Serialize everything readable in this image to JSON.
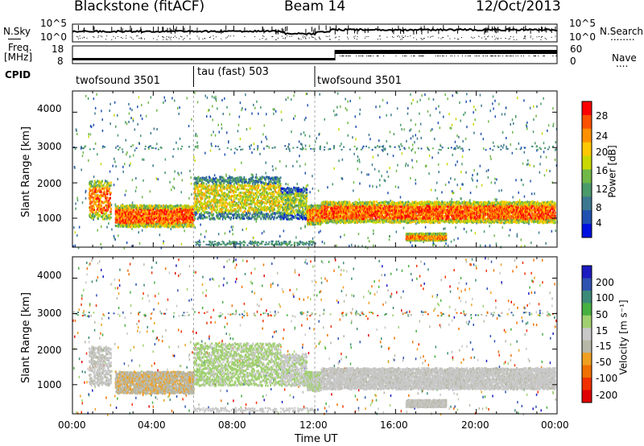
{
  "header": {
    "station": "Blackstone (fitACF)",
    "beam": "Beam 14",
    "date": "12/Oct/2013"
  },
  "noise_panel": {
    "left_label": "N.Sky",
    "right_label": "N.Search",
    "right_legend": "........",
    "ytick_top": "10^5",
    "ytick_bottom": "10^0"
  },
  "freq_panel": {
    "left_label_line1": "Freq.",
    "left_label_line2": "[MHz]",
    "left_ticks": [
      "18",
      "8"
    ],
    "right_ticks": [
      "60",
      "0"
    ],
    "right_label": "Nave",
    "right_legend": "....",
    "cpid_label": "CPID"
  },
  "cpid_segments": [
    {
      "label": "twofsound 3501",
      "start_hour": 0,
      "end_hour": 6
    },
    {
      "label": "tau (fast) 503",
      "start_hour": 6,
      "end_hour": 12
    },
    {
      "label": "twofsound 3501",
      "start_hour": 12,
      "end_hour": 24
    }
  ],
  "x_axis": {
    "title": "Time UT",
    "ticks": [
      "00:00",
      "04:00",
      "08:00",
      "12:00",
      "16:00",
      "20:00",
      "00:00"
    ],
    "range_hours": [
      0,
      24
    ]
  },
  "power_panel": {
    "ylabel": "Slant Range [km]",
    "yticks": [
      "4000",
      "3000",
      "2000",
      "1000"
    ],
    "colorbar_label": "Power [dB]",
    "colorbar_ticks": [
      "28",
      "24",
      "20",
      "16",
      "12",
      "8",
      "4"
    ],
    "colorbar_colors": [
      "#ff0000",
      "#ff5000",
      "#ff9000",
      "#ffc800",
      "#c8d800",
      "#70b848",
      "#4a9a6a",
      "#3c7890",
      "#2050b0",
      "#0010e0"
    ]
  },
  "velocity_panel": {
    "ylabel": "Slant Range [km]",
    "yticks": [
      "4000",
      "3000",
      "2000",
      "1000"
    ],
    "colorbar_label": "Velocity [m s⁻¹]",
    "colorbar_ticks": [
      "200",
      "100",
      "50",
      "15",
      "-15",
      "-50",
      "-100",
      "-200"
    ],
    "colorbar_colors": [
      "#1c1cc0",
      "#2e52b0",
      "#3c8a78",
      "#46b040",
      "#a0d070",
      "#c8c8c8",
      "#b8b8a8",
      "#f0a020",
      "#f07000",
      "#f03000",
      "#e00000"
    ]
  },
  "chart_data": {
    "type": "heatmap",
    "title": "Blackstone (fitACF) Beam 14 12/Oct/2013",
    "xlabel": "Time UT",
    "ylabel": "Slant Range [km]",
    "xlim_hours": [
      0,
      24
    ],
    "ylim_km": [
      180,
      4600
    ],
    "panels": [
      {
        "name": "Power",
        "units": "dB",
        "colorbar_range": [
          0,
          30
        ],
        "echo_bands": [
          {
            "start_hour": 0.8,
            "end_hour": 1.9,
            "range_low_km": 1000,
            "range_high_km": 2100,
            "value": 24
          },
          {
            "start_hour": 2.1,
            "end_hour": 6.0,
            "range_low_km": 780,
            "range_high_km": 1400,
            "value": 26
          },
          {
            "start_hour": 6.0,
            "end_hour": 10.3,
            "range_low_km": 1000,
            "range_high_km": 2200,
            "value": 18
          },
          {
            "start_hour": 10.3,
            "end_hour": 11.6,
            "range_low_km": 1000,
            "range_high_km": 1900,
            "value": 14
          },
          {
            "start_hour": 11.6,
            "end_hour": 12.3,
            "range_low_km": 850,
            "range_high_km": 1400,
            "value": 24
          },
          {
            "start_hour": 12.3,
            "end_hour": 23.9,
            "range_low_km": 900,
            "range_high_km": 1500,
            "value": 26
          },
          {
            "start_hour": 16.5,
            "end_hour": 18.5,
            "range_low_km": 400,
            "range_high_km": 600,
            "value": 24
          }
        ]
      },
      {
        "name": "Velocity",
        "units": "m s^-1",
        "colorbar_range": [
          -250,
          250
        ],
        "echo_bands": [
          {
            "start_hour": 0.8,
            "end_hour": 1.9,
            "range_low_km": 1000,
            "range_high_km": 2100,
            "value": -10
          },
          {
            "start_hour": 2.1,
            "end_hour": 6.0,
            "range_low_km": 780,
            "range_high_km": 1400,
            "value": -60
          },
          {
            "start_hour": 6.0,
            "end_hour": 10.3,
            "range_low_km": 1000,
            "range_high_km": 2200,
            "value": 40
          },
          {
            "start_hour": 10.3,
            "end_hour": 11.6,
            "range_low_km": 1000,
            "range_high_km": 1900,
            "value": 10
          },
          {
            "start_hour": 11.6,
            "end_hour": 12.3,
            "range_low_km": 850,
            "range_high_km": 1400,
            "value": 20
          },
          {
            "start_hour": 12.3,
            "end_hour": 23.9,
            "range_low_km": 900,
            "range_high_km": 1500,
            "value": -5
          },
          {
            "start_hour": 16.5,
            "end_hour": 18.5,
            "range_low_km": 400,
            "range_high_km": 600,
            "value": -20
          }
        ]
      }
    ]
  }
}
